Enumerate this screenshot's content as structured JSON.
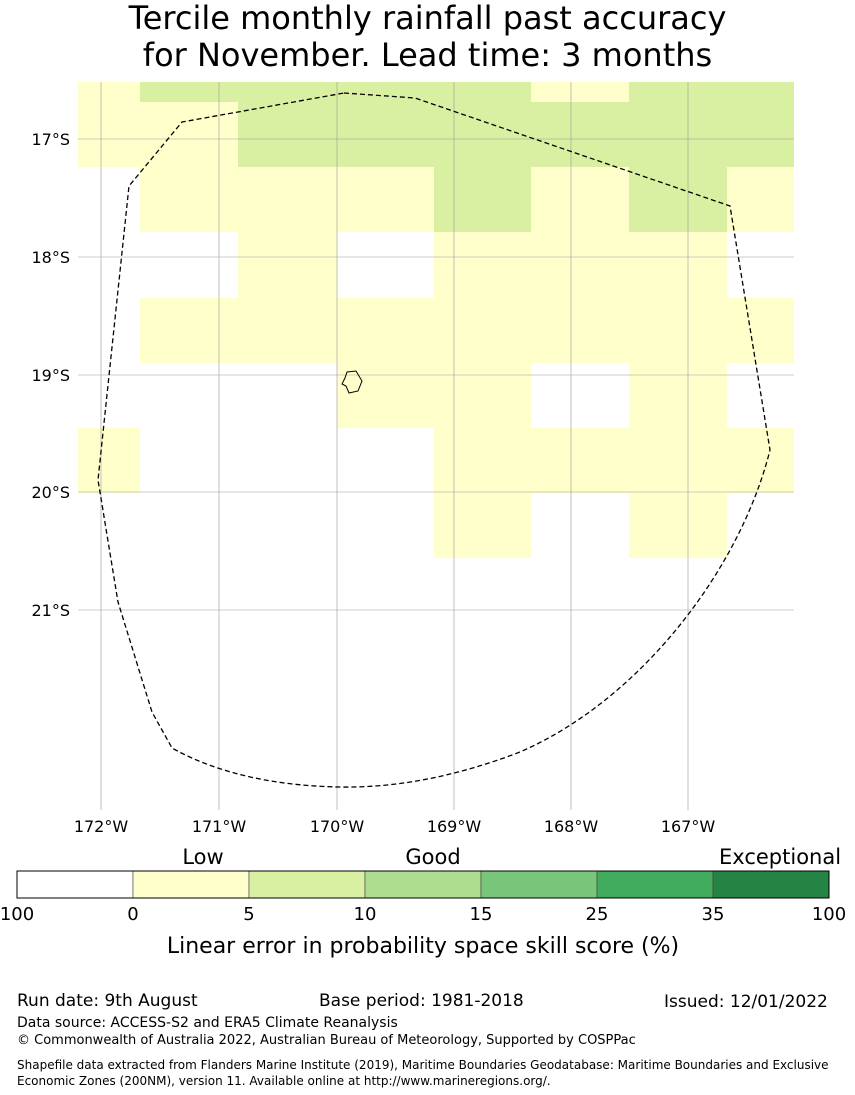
{
  "title": {
    "line1": "Tercile monthly rainfall past accuracy",
    "line2": "for November. Lead time: 3 months"
  },
  "map": {
    "lat_labels": [
      "17°S",
      "18°S",
      "19°S",
      "20°S",
      "21°S"
    ],
    "lon_labels": [
      "172°W",
      "171°W",
      "170°W",
      "169°W",
      "168°W",
      "167°W"
    ],
    "lat_values": [
      -17,
      -18,
      -19,
      -20,
      -21
    ],
    "lon_values": [
      -172,
      -171,
      -170,
      -169,
      -168,
      -167
    ],
    "colors": {
      "c0": "#ffffff",
      "c1": "#ffffcc",
      "c2": "#d9f0a3",
      "c3": "#addd8e",
      "c4": "#78c679",
      "c5": "#41ab5d",
      "c6": "#238443"
    },
    "cells": [
      {
        "col": 0,
        "row": 0,
        "level": 1
      },
      {
        "col": 1,
        "row": 0,
        "level": 2
      },
      {
        "col": 2,
        "row": 0,
        "level": 1
      },
      {
        "col": 3,
        "row": 0,
        "level": 2
      },
      {
        "col": 4,
        "row": 0,
        "level": 2
      },
      {
        "col": 5,
        "row": 0,
        "level": 2
      },
      {
        "col": 6,
        "row": 0,
        "level": 2
      },
      {
        "col": 7,
        "row": 0,
        "level": 1
      },
      {
        "col": 8,
        "row": 0,
        "level": 2
      },
      {
        "col": 9,
        "row": 0,
        "level": 2
      },
      {
        "col": 10,
        "row": 0,
        "level": 2
      },
      {
        "col": 0,
        "row": 1,
        "level": 1
      },
      {
        "col": 1,
        "row": 1,
        "level": 1
      },
      {
        "col": 2,
        "row": 1,
        "level": 1
      },
      {
        "col": 3,
        "row": 1,
        "level": 2
      },
      {
        "col": 4,
        "row": 1,
        "level": 2
      },
      {
        "col": 5,
        "row": 1,
        "level": 2
      },
      {
        "col": 6,
        "row": 1,
        "level": 2
      },
      {
        "col": 7,
        "row": 1,
        "level": 2
      },
      {
        "col": 8,
        "row": 1,
        "level": 2
      },
      {
        "col": 9,
        "row": 1,
        "level": 2
      },
      {
        "col": 10,
        "row": 1,
        "level": 2
      },
      {
        "col": 1,
        "row": 2,
        "level": 1
      },
      {
        "col": 2,
        "row": 2,
        "level": 1
      },
      {
        "col": 3,
        "row": 2,
        "level": 1
      },
      {
        "col": 4,
        "row": 2,
        "level": 1
      },
      {
        "col": 5,
        "row": 2,
        "level": 1
      },
      {
        "col": 6,
        "row": 2,
        "level": 2
      },
      {
        "col": 7,
        "row": 2,
        "level": 1
      },
      {
        "col": 8,
        "row": 2,
        "level": 1
      },
      {
        "col": 9,
        "row": 2,
        "level": 2
      },
      {
        "col": 10,
        "row": 2,
        "level": 1
      },
      {
        "col": 3,
        "row": 3,
        "level": 1
      },
      {
        "col": 6,
        "row": 3,
        "level": 1
      },
      {
        "col": 7,
        "row": 3,
        "level": 1
      },
      {
        "col": 8,
        "row": 3,
        "level": 1
      },
      {
        "col": 9,
        "row": 3,
        "level": 1
      },
      {
        "col": 1,
        "row": 4,
        "level": 1
      },
      {
        "col": 2,
        "row": 4,
        "level": 1
      },
      {
        "col": 3,
        "row": 4,
        "level": 1
      },
      {
        "col": 4,
        "row": 4,
        "level": 1
      },
      {
        "col": 5,
        "row": 4,
        "level": 1
      },
      {
        "col": 6,
        "row": 4,
        "level": 1
      },
      {
        "col": 7,
        "row": 4,
        "level": 1
      },
      {
        "col": 8,
        "row": 4,
        "level": 1
      },
      {
        "col": 9,
        "row": 4,
        "level": 1
      },
      {
        "col": 10,
        "row": 4,
        "level": 1
      },
      {
        "col": 4,
        "row": 5,
        "level": 1
      },
      {
        "col": 5,
        "row": 5,
        "level": 1
      },
      {
        "col": 6,
        "row": 5,
        "level": 1
      },
      {
        "col": 9,
        "row": 5,
        "level": 1
      },
      {
        "col": 0,
        "row": 6,
        "level": 1
      },
      {
        "col": 6,
        "row": 6,
        "level": 1
      },
      {
        "col": 7,
        "row": 6,
        "level": 1
      },
      {
        "col": 8,
        "row": 6,
        "level": 1
      },
      {
        "col": 9,
        "row": 6,
        "level": 1
      },
      {
        "col": 10,
        "row": 6,
        "level": 1
      },
      {
        "col": 6,
        "row": 7,
        "level": 1
      },
      {
        "col": 9,
        "row": 7,
        "level": 1
      }
    ]
  },
  "legend": {
    "categories": [
      "Low",
      "Good",
      "Exceptional"
    ],
    "tick_labels": [
      "100",
      "0",
      "5",
      "10",
      "15",
      "25",
      "35",
      "100"
    ],
    "colors": [
      "#ffffff",
      "#ffffcc",
      "#d9f0a3",
      "#addd8e",
      "#78c679",
      "#41ab5d",
      "#238443"
    ],
    "axis_label": "Linear error in probability space skill score (%)"
  },
  "footer": {
    "run_date": "Run date: 9th August",
    "base_period": "Base period: 1981-2018",
    "issued": "Issued: 12/01/2022",
    "data_source": "Data source: ACCESS-S2 and ERA5 Climate Reanalysis",
    "copyright": "© Commonwealth of Australia 2022, Australian Bureau of Meteorology, Supported by COSPPac",
    "shapefile": "Shapefile data extracted from Flanders Marine Institute (2019), Maritime Boundaries Geodatabase: Maritime Boundaries and Exclusive Economic Zones (200NM), version 11. Available online at http://www.marineregions.org/."
  }
}
